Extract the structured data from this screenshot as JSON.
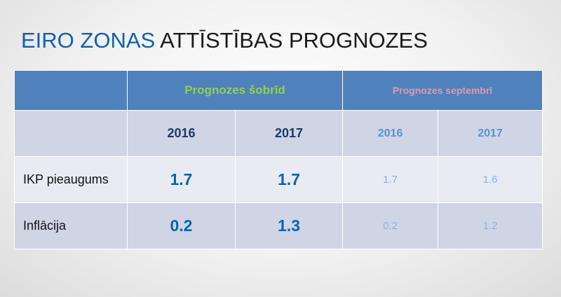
{
  "title": {
    "accent": "EIRO ZONAS",
    "rest": " ATTĪSTĪBAS PROGNOZES"
  },
  "table": {
    "corner_label": "",
    "corner_label_2": "",
    "groups": {
      "current": "Prognozes šobrīd",
      "september": "Prognozes septembrī"
    },
    "years": {
      "current_1": "2016",
      "current_2": "2017",
      "september_1": "2016",
      "september_2": "2017"
    },
    "rows": [
      {
        "label": "IKP pieaugums",
        "current_2016": "1.7",
        "current_2017": "1.7",
        "september_2016": "1.7",
        "september_2017": "1.6"
      },
      {
        "label": "Inflācija",
        "current_2016": "0.2",
        "current_2017": "1.3",
        "september_2016": "0.2",
        "september_2017": "1.2"
      }
    ]
  }
}
